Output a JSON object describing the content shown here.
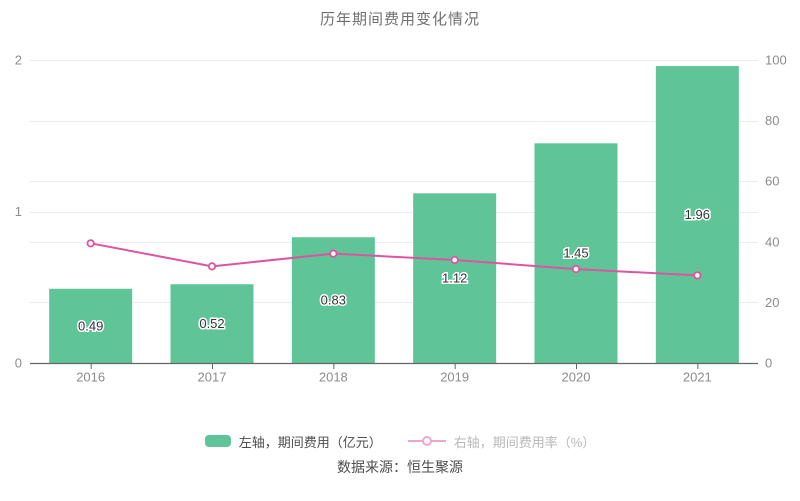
{
  "title": "历年期间费用变化情况",
  "source": "数据来源：恒生聚源",
  "legend": [
    {
      "label": "左轴，期间费用（亿元）",
      "series_type": "bar"
    },
    {
      "label": "右轴，期间费用率（%）",
      "series_type": "line"
    }
  ],
  "colors": {
    "bar": "#5fc497",
    "line": "#dc55a2",
    "line_muted": "#efa6cd",
    "grid": "#e8edf6",
    "axis": "#666666",
    "axis_label": "#8c8c8c",
    "bar_label": "#333333",
    "title_text": "#707070",
    "legend_dark": "#4d4d4d",
    "legend_muted": "#b9b9b9",
    "source_text": "#4d4d4d"
  },
  "chart_data": {
    "type": "bar",
    "title": "历年期间费用变化情况",
    "categories": [
      "2016",
      "2017",
      "2018",
      "2019",
      "2020",
      "2021"
    ],
    "series": [
      {
        "name": "左轴，期间费用（亿元）",
        "type": "bar",
        "axis": "left",
        "values": [
          0.49,
          0.52,
          0.83,
          1.12,
          1.45,
          1.96
        ]
      },
      {
        "name": "右轴，期间费用率（%）",
        "type": "line",
        "axis": "right",
        "values": [
          39.5,
          31.9,
          36.1,
          34.0,
          31.0,
          28.9
        ]
      }
    ],
    "left_axis": {
      "min": 0,
      "max": 2,
      "ticks": [
        0,
        1,
        2
      ]
    },
    "right_axis": {
      "min": 0,
      "max": 100,
      "ticks": [
        0,
        20,
        40,
        60,
        80,
        100
      ]
    },
    "grid": true,
    "legend_position": "bottom",
    "bar_value_labels": true
  }
}
